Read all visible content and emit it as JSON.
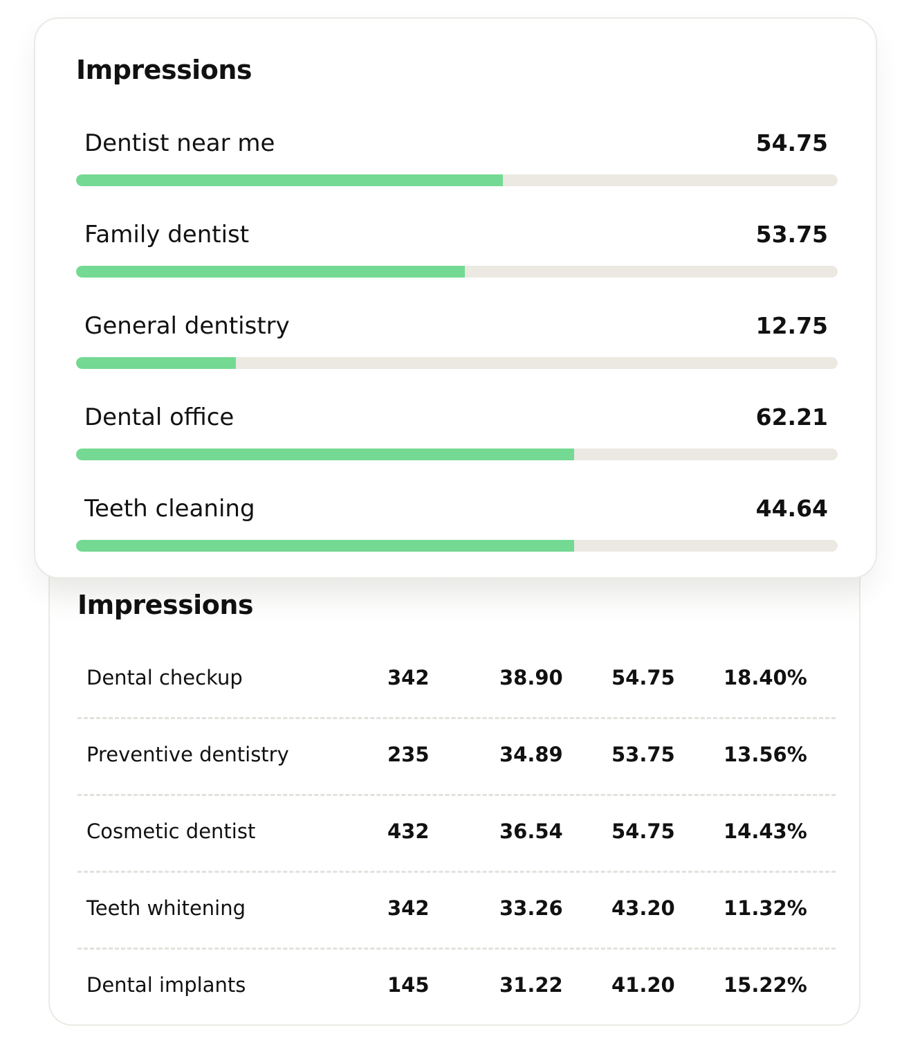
{
  "top_card": {
    "title": "Impressions",
    "colors": {
      "fill": "#74d992",
      "track": "#ece9e3"
    },
    "items": [
      {
        "label": "Dentist near me",
        "value": "54.75",
        "fill": 0.56
      },
      {
        "label": "Family dentist",
        "value": "53.75",
        "fill": 0.51
      },
      {
        "label": "General dentistry",
        "value": "12.75",
        "fill": 0.21
      },
      {
        "label": "Dental office",
        "value": "62.21",
        "fill": 0.654
      },
      {
        "label": "Teeth cleaning",
        "value": "44.64",
        "fill": 0.654
      }
    ]
  },
  "bottom_card": {
    "title": "Impressions",
    "rows": [
      [
        "Dental checkup",
        "342",
        "38.90",
        "54.75",
        "18.40%"
      ],
      [
        "Preventive dentistry",
        "235",
        "34.89",
        "53.75",
        "13.56%"
      ],
      [
        "Cosmetic dentist",
        "432",
        "36.54",
        "54.75",
        "14.43%"
      ],
      [
        "Teeth whitening",
        "342",
        "33.26",
        "43.20",
        "11.32%"
      ],
      [
        "Dental implants",
        "145",
        "31.22",
        "41.20",
        "15.22%"
      ]
    ]
  }
}
